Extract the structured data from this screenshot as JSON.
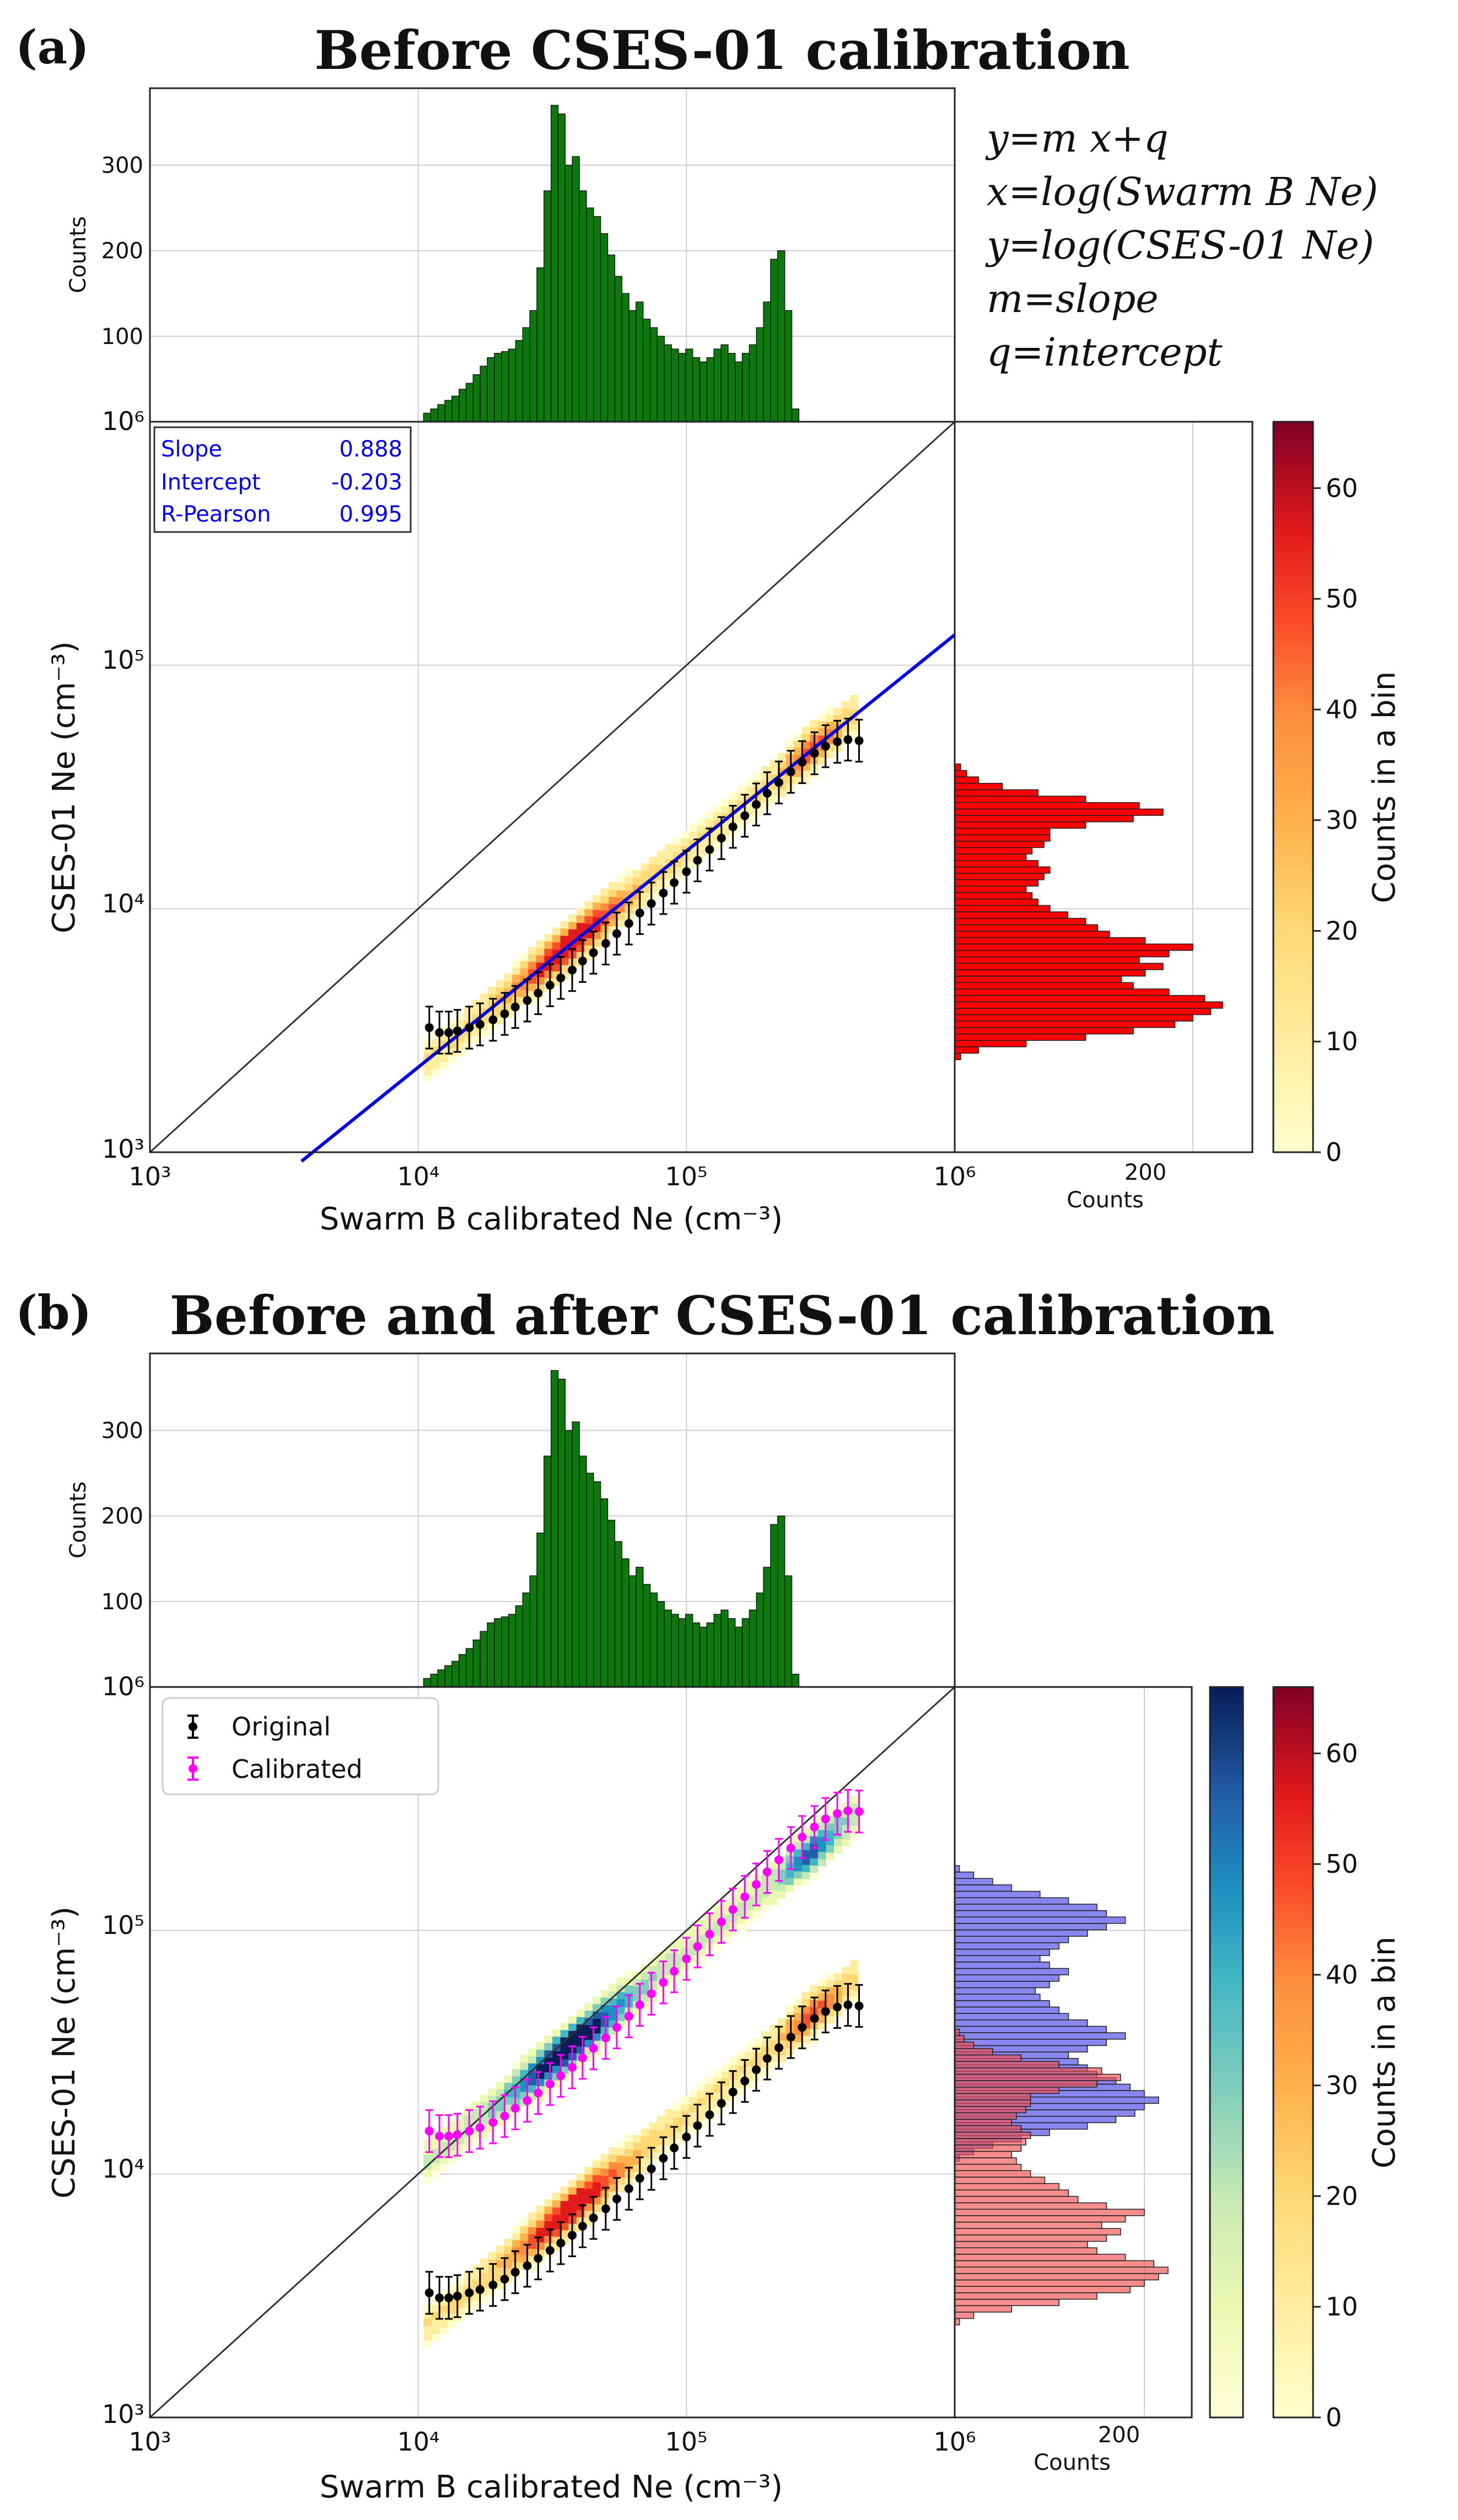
{
  "panels": [
    {
      "letter": "(a)",
      "title": "Before CSES-01 calibration",
      "xlabel": "Swarm B calibrated Ne (cm⁻³)",
      "ylabel": "CSES-01 Ne (cm⁻³)",
      "top_hist_ylabel": "Counts",
      "right_hist_xlabel": "Counts",
      "colorbar_label": "Counts in a bin",
      "stats": [
        {
          "name": "Slope",
          "value": "0.888"
        },
        {
          "name": "Intercept",
          "value": "-0.203"
        },
        {
          "name": "R-Pearson",
          "value": "0.995"
        }
      ],
      "equations": [
        "y=m x+q",
        "x=log(Swarm B Ne)",
        "y=log(CSES-01 Ne)",
        "m=slope",
        "q=intercept"
      ]
    },
    {
      "letter": "(b)",
      "title": "Before and after CSES-01 calibration",
      "xlabel": "Swarm B calibrated Ne (cm⁻³)",
      "ylabel": "CSES-01 Ne (cm⁻³)",
      "top_hist_ylabel": "Counts",
      "right_hist_xlabel": "Counts",
      "colorbar_label": "Counts in a bin",
      "legend": [
        "Original",
        "Calibrated"
      ]
    }
  ],
  "chart_data": {
    "type": "scatter",
    "xlim": [
      1000,
      1000000
    ],
    "ylim": [
      1000,
      1000000
    ],
    "log_axes": true,
    "x_ticks": [
      "10³",
      "10⁴",
      "10⁵",
      "10⁶"
    ],
    "y_ticks": [
      "10³",
      "10⁴",
      "10⁵",
      "10⁶"
    ],
    "fit": {
      "slope": 0.888,
      "intercept": -0.203
    },
    "original_binned": {
      "x": [
        11000,
        12000,
        13000,
        14000,
        15500,
        17000,
        19000,
        21000,
        23000,
        25500,
        28000,
        31000,
        34000,
        37500,
        41000,
        45000,
        50000,
        55000,
        61000,
        67000,
        74000,
        82000,
        90000,
        100000,
        110000,
        122000,
        135000,
        149000,
        165000,
        182000,
        200000,
        221000,
        245000,
        270000,
        300000,
        330000,
        365000,
        400000,
        440000
      ],
      "y": [
        3250,
        3100,
        3100,
        3150,
        3250,
        3350,
        3500,
        3700,
        3950,
        4200,
        4500,
        4850,
        5200,
        5600,
        6100,
        6600,
        7200,
        7900,
        8700,
        9600,
        10500,
        11600,
        12800,
        14200,
        15800,
        17500,
        19500,
        21700,
        24100,
        26800,
        29800,
        33000,
        36500,
        40000,
        43500,
        46500,
        48500,
        49500,
        49000
      ]
    },
    "calibrated_binned": {
      "x": [
        11000,
        12000,
        13000,
        14000,
        15500,
        17000,
        19000,
        21000,
        23000,
        25500,
        28000,
        31000,
        34000,
        37500,
        41000,
        45000,
        50000,
        55000,
        61000,
        67000,
        74000,
        82000,
        90000,
        100000,
        110000,
        122000,
        135000,
        149000,
        165000,
        182000,
        200000,
        221000,
        245000,
        270000,
        300000,
        330000,
        365000,
        400000,
        440000
      ],
      "y": [
        15000,
        14300,
        14300,
        14500,
        15000,
        15500,
        16300,
        17300,
        18600,
        20000,
        21500,
        23400,
        25300,
        27400,
        30000,
        32800,
        36200,
        40000,
        44400,
        49500,
        55000,
        61200,
        68000,
        76500,
        86000,
        96500,
        108500,
        122000,
        137500,
        154500,
        174000,
        195000,
        218000,
        242000,
        266000,
        287000,
        302000,
        310000,
        308000
      ]
    },
    "top_histogram": {
      "ylabel": "Counts",
      "yticks": [
        100,
        200,
        300
      ],
      "ylim": [
        0,
        390
      ],
      "log_x_bin_centers_from": 4.02,
      "bin_width_log": 0.0264,
      "counts": [
        10,
        15,
        20,
        25,
        30,
        38,
        45,
        55,
        65,
        75,
        80,
        82,
        85,
        95,
        110,
        130,
        180,
        270,
        370,
        360,
        300,
        310,
        270,
        250,
        240,
        220,
        195,
        170,
        150,
        130,
        140,
        120,
        110,
        100,
        90,
        85,
        80,
        85,
        75,
        70,
        75,
        85,
        90,
        80,
        70,
        80,
        90,
        110,
        140,
        190,
        200,
        130,
        15
      ]
    },
    "right_histogram": {
      "xlabel": "Counts",
      "xticks": [
        200
      ],
      "xlim": [
        0,
        250
      ],
      "log_y_bin_centers_from": 3.38,
      "bin_width_log": 0.0264,
      "counts_original": [
        5,
        20,
        60,
        110,
        150,
        185,
        200,
        215,
        225,
        210,
        180,
        150,
        140,
        160,
        175,
        155,
        180,
        200,
        160,
        130,
        120,
        110,
        95,
        80,
        70,
        65,
        60,
        70,
        75,
        80,
        70,
        60,
        65,
        75,
        80,
        80,
        110,
        150,
        175,
        155,
        110,
        70,
        40,
        20,
        10,
        5
      ],
      "counts_calibrated": [
        5,
        20,
        40,
        70,
        100,
        140,
        170,
        190,
        200,
        215,
        200,
        185,
        170,
        150,
        140,
        130,
        120,
        140,
        160,
        180,
        160,
        140,
        120,
        110,
        100,
        90,
        85,
        100,
        110,
        120,
        100,
        90,
        100,
        110,
        120,
        140,
        160,
        180,
        160,
        150,
        120,
        90,
        60,
        40,
        20,
        5
      ]
    },
    "colorbar_ticks": [
      0,
      10,
      20,
      30,
      40,
      50,
      60
    ],
    "colorbar_range": [
      0,
      66
    ],
    "colorbar_label": "Counts in a bin"
  }
}
